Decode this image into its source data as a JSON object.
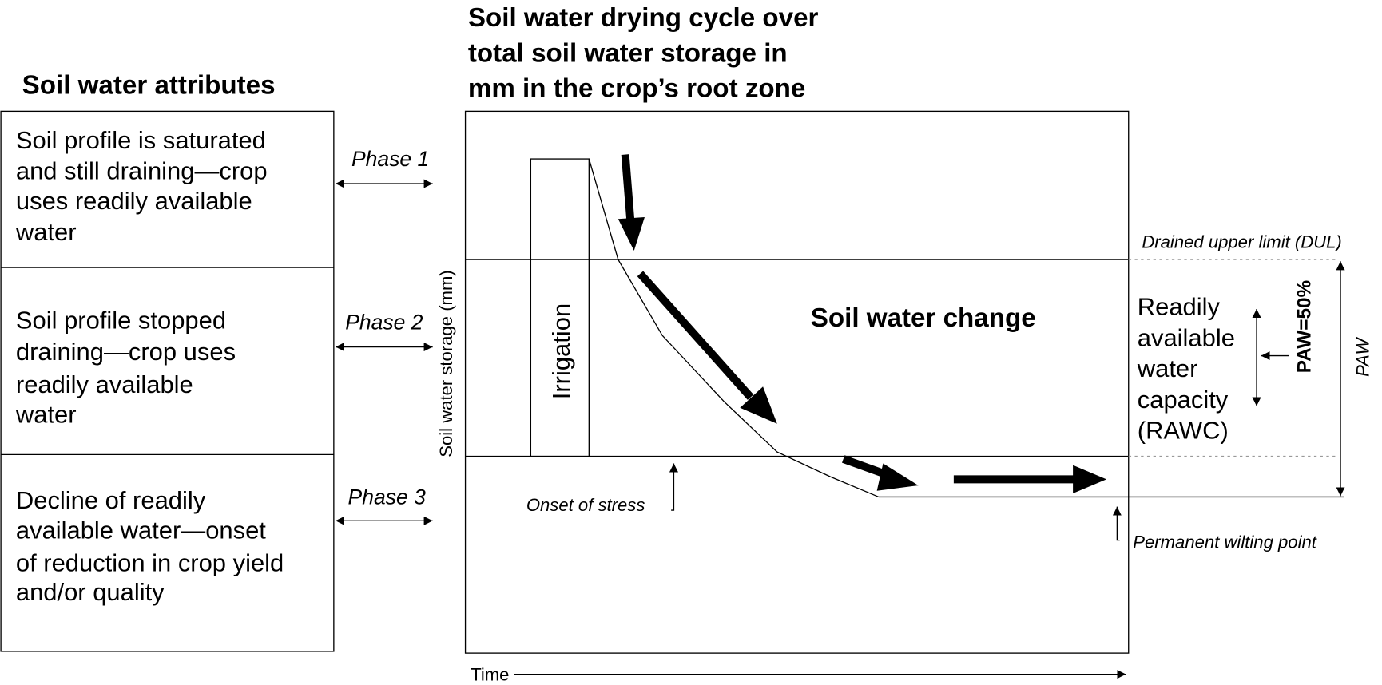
{
  "attributes": {
    "title": "Soil water attributes",
    "boxes": [
      {
        "lines": [
          "Soil profile is saturated",
          "and still draining—crop",
          "uses readily available",
          "water"
        ]
      },
      {
        "lines": [
          "Soil profile stopped",
          "draining—crop uses",
          "readily available",
          "water"
        ]
      },
      {
        "lines": [
          "Decline of readily",
          "available water—onset",
          "of reduction in crop yield",
          "and/or quality"
        ]
      }
    ],
    "phases": [
      "Phase 1",
      "Phase 2",
      "Phase 3"
    ]
  },
  "diagram": {
    "title_lines": [
      "Soil water drying cycle over",
      "total soil water storage in",
      "mm in the crop’s root zone"
    ],
    "y_axis_label": "Soil water storage (mm)",
    "x_axis_label": "Time",
    "irrigation": "Irrigation",
    "center_label": "Soil water change",
    "onset": "Onset of stress",
    "dul": "Drained upper limit (DUL)",
    "rawc_lines": [
      "Readily",
      "available",
      "water",
      "capacity",
      "(RAWC)"
    ],
    "paw50": "PAW=50%",
    "paw": "PAW",
    "pwp": "Permanent wilting point"
  }
}
